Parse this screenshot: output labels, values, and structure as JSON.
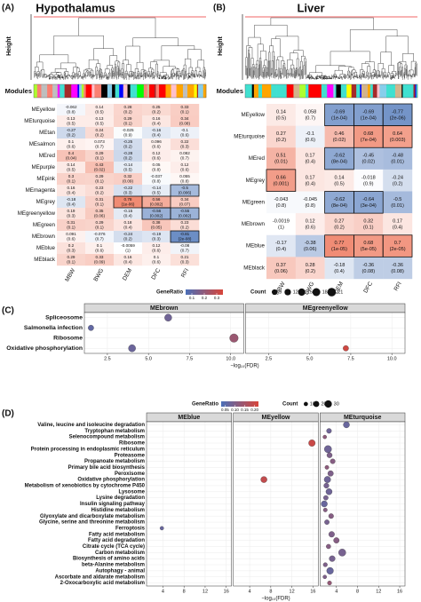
{
  "chart_data": [
    {
      "type": "heatmap",
      "panel": "(A)",
      "title": "Hypothalamus",
      "ylabel": "Height",
      "module_label": "Modules",
      "rows": [
        "MEyellow",
        "MEturquoise",
        "MEtan",
        "MEsalmon",
        "MEred",
        "MEpurple",
        "MEpink",
        "MEmagenta",
        "MEgrey",
        "MEgreenyellow",
        "MEgreen",
        "MEbrown",
        "MEblue",
        "MEblack"
      ],
      "columns": [
        "MBW",
        "BWG",
        "DEM",
        "DFC",
        "RFI"
      ],
      "values": [
        [
          -0.062,
          0.14,
          0.28,
          0.25,
          0.33
        ],
        [
          0.13,
          0.13,
          0.29,
          0.16,
          0.34
        ],
        [
          -0.27,
          0.24,
          -0.025,
          -0.16,
          -0.1
        ],
        [
          0.1,
          0.073,
          -0.25,
          0.096,
          0.22
        ],
        [
          0.4,
          0.29,
          -0.28,
          0.12,
          0.082
        ],
        [
          0.14,
          0.43,
          -0.14,
          0.05,
          0.12
        ],
        [
          0.3,
          0.29,
          0.32,
          -0.037,
          0.055
        ],
        [
          0.16,
          0.23,
          -0.22,
          -0.14,
          -0.5
        ],
        [
          -0.18,
          0.31,
          0.78,
          0.56,
          0.34
        ],
        [
          0.19,
          0.35,
          -0.15,
          -0.56,
          -0.55
        ],
        [
          0.31,
          0.29,
          0.18,
          0.38,
          0.23
        ],
        [
          0.091,
          -0.076,
          -0.24,
          -0.19,
          -0.81
        ],
        [
          0.2,
          0.1,
          -0.0059,
          0.12,
          -0.08
        ],
        [
          0.29,
          0.33,
          0.16,
          0.1,
          0.21
        ]
      ],
      "p_labels": [
        [
          "(0.8)",
          "(0.5)",
          "(0.2)",
          "(0.2)",
          "(0.1)"
        ],
        [
          "(0.5)",
          "(0.5)",
          "(0.1)",
          "(0.4)",
          "(0.08)"
        ],
        [
          "(0.2)",
          "(0.2)",
          "(0.9)",
          "(0.4)",
          "(0.6)"
        ],
        [
          "(0.6)",
          "(0.7)",
          "(0.2)",
          "(0.6)",
          "(0.3)"
        ],
        [
          "(0.04)",
          "(0.1)",
          "(0.2)",
          "(0.6)",
          "(0.7)"
        ],
        [
          "(0.5)",
          "(0.02)",
          "(0.5)",
          "(0.8)",
          "(0.6)"
        ],
        [
          "(0.1)",
          "(0.1)",
          "(0.09)",
          "(0.8)",
          "(0.8)"
        ],
        [
          "(0.4)",
          "(0.2)",
          "(0.3)",
          "(0.5)",
          "(0.006)"
        ],
        [
          "(0.4)",
          "(0.1)",
          "(1e-06)",
          "(0.002)",
          "(0.07)"
        ],
        [
          "(0.3)",
          "(0.06)",
          "(0.4)",
          "(0.002)",
          "(0.002)"
        ],
        [
          "(0.1)",
          "(0.1)",
          "(0.4)",
          "(0.05)",
          "(0.2)"
        ],
        [
          "(0.6)",
          "(0.7)",
          "(0.2)",
          "(0.3)",
          "(2e-08)"
        ],
        [
          "(0.3)",
          "(0.6)",
          "(1)",
          "(0.6)",
          "(0.7)"
        ],
        [
          "(0.1)",
          "(0.09)",
          "(0.4)",
          "(0.6)",
          "(0.3)"
        ]
      ],
      "significant": [
        [
          false,
          false,
          false,
          false,
          false
        ],
        [
          false,
          false,
          false,
          false,
          false
        ],
        [
          false,
          false,
          false,
          false,
          false
        ],
        [
          false,
          false,
          false,
          false,
          false
        ],
        [
          false,
          false,
          false,
          false,
          false
        ],
        [
          false,
          false,
          false,
          false,
          false
        ],
        [
          false,
          false,
          false,
          false,
          false
        ],
        [
          false,
          false,
          false,
          false,
          true
        ],
        [
          false,
          false,
          true,
          true,
          false
        ],
        [
          false,
          false,
          false,
          true,
          true
        ],
        [
          false,
          false,
          false,
          false,
          false
        ],
        [
          false,
          false,
          false,
          false,
          true
        ],
        [
          false,
          false,
          false,
          false,
          false
        ],
        [
          false,
          false,
          false,
          false,
          false
        ]
      ],
      "colors": {
        "negative": "#4a74b8",
        "positive": "#ec6a4c",
        "significant_text": "#a020f0"
      }
    },
    {
      "type": "heatmap",
      "panel": "(B)",
      "title": "Liver",
      "ylabel": "Height",
      "module_label": "Modules",
      "rows": [
        "MEyellow",
        "MEturquoise",
        "MEred",
        "MEgrey",
        "MEgreen",
        "MEbrown",
        "MEblue",
        "MEblack"
      ],
      "columns": [
        "MBW",
        "BWG",
        "DEM",
        "DFC",
        "RFI"
      ],
      "values": [
        [
          0.14,
          0.058,
          -0.69,
          -0.69,
          -0.77
        ],
        [
          0.27,
          -0.1,
          0.46,
          0.68,
          0.64
        ],
        [
          0.51,
          0.17,
          -0.62,
          -0.45,
          -0.48
        ],
        [
          0.66,
          0.17,
          0.14,
          -0.018,
          -0.24
        ],
        [
          -0.043,
          -0.045,
          -0.62,
          -0.64,
          -0.5
        ],
        [
          -0.0019,
          0.12,
          0.27,
          0.32,
          0.17
        ],
        [
          -0.17,
          -0.38,
          0.77,
          0.68,
          0.7
        ],
        [
          0.37,
          0.28,
          -0.18,
          -0.36,
          -0.36
        ]
      ],
      "p_labels": [
        [
          "(0.5)",
          "(0.7)",
          "(1e-04)",
          "(1e-04)",
          "(2e-06)"
        ],
        [
          "(0.2)",
          "(0.6)",
          "(0.02)",
          "(7e-04)",
          "(0.003)"
        ],
        [
          "(0.01)",
          "(0.4)",
          "(8e-04)",
          "(0.02)",
          "(0.01)"
        ],
        [
          "(0.001)",
          "(0.4)",
          "(0.5)",
          "(0.9)",
          "(0.2)"
        ],
        [
          "(0.8)",
          "(0.8)",
          "(8e-04)",
          "(3e-04)",
          "(0.01)"
        ],
        [
          "(1)",
          "(0.6)",
          "(0.2)",
          "(0.1)",
          "(0.4)"
        ],
        [
          "(0.4)",
          "(0.06)",
          "(1e-05)",
          "(5e-05)",
          "(2e-05)"
        ],
        [
          "(0.06)",
          "(0.2)",
          "(0.4)",
          "(0.08)",
          "(0.08)"
        ]
      ],
      "significant": [
        [
          false,
          false,
          true,
          true,
          true
        ],
        [
          false,
          false,
          false,
          true,
          true
        ],
        [
          false,
          false,
          true,
          false,
          false
        ],
        [
          true,
          false,
          false,
          false,
          false
        ],
        [
          false,
          false,
          true,
          true,
          false
        ],
        [
          false,
          false,
          false,
          false,
          false
        ],
        [
          false,
          false,
          true,
          true,
          true
        ],
        [
          false,
          false,
          false,
          false,
          false
        ]
      ],
      "colors": {
        "negative": "#4a74b8",
        "positive": "#ec6a4c",
        "significant_text": "#a020f0"
      }
    },
    {
      "type": "dot",
      "panel": "(C)",
      "categories": [
        "Spliceosome",
        "Salmonella infection",
        "Ribosome",
        "Oxidative phosphorylation"
      ],
      "highlight": "Oxidative phosphorylation",
      "highlight_color": "#e41a1c",
      "facets": [
        {
          "name": "MEbrown",
          "x": [
            6.2,
            1.5,
            10.2,
            4.0
          ],
          "count": [
            15,
            9,
            21,
            15
          ],
          "ratio": [
            0.13,
            0.1,
            0.22,
            0.12
          ]
        },
        {
          "name": "MEgreenyellow",
          "x": [
            null,
            null,
            null,
            7.2
          ],
          "count": [
            null,
            null,
            null,
            9
          ],
          "ratio": [
            null,
            null,
            null,
            0.33
          ]
        }
      ],
      "xlabel": "−log₁₀(FDR)",
      "xlim": [
        1.1,
        10.8
      ],
      "xticks": [
        2.5,
        {
          "value": 5,
          "label": "5.0"
        },
        7.5,
        {
          "value": 10,
          "label": "10.0"
        }
      ],
      "color_legend_title": "GeneRatio",
      "ratio_lim": [
        0.05,
        0.35
      ],
      "ratio_ticks": [
        0.1,
        0.2,
        0.3
      ],
      "colors": {
        "low": "#4a6fb8",
        "high": "#d8453a"
      },
      "size_legend_title": "Count",
      "count_ticks": [
        9,
        12,
        15,
        18,
        21
      ]
    },
    {
      "type": "dot",
      "panel": "(D)",
      "categories": [
        "Valine, leucine and isoleucine degradation",
        "Tryptophan metabolism",
        "Selenocompound metabolism",
        "Ribosome",
        "Protein processing in endoplasmic reticulum",
        "Proteasome",
        "Propanoate metabolism",
        "Primary bile acid biosynthesis",
        "Peroxisome",
        "Oxidative phosphorylation",
        "Metabolism of xenobiotics by cytochrome P450",
        "Lysosome",
        "Lysine degradation",
        "Insulin signaling pathway",
        "Histidine metabolism",
        "Glyoxylate and dicarboxylate metabolism",
        "Glycine, serine and threonine metabolism",
        "Ferroptosis",
        "Fatty acid metabolism",
        "Fatty acid degradation",
        "Citrate cycle (TCA cycle)",
        "Carbon metabolism",
        "Biosynthesis of amino acids",
        "beta-Alanine metabolism",
        "Autophagy - animal",
        "Ascorbate and aldarate metabolism",
        "2-Oxocarboxylic acid metabolism"
      ],
      "highlight": "Oxidative phosphorylation",
      "highlight_color": "#e41a1c",
      "facets": [
        {
          "name": "MEblue",
          "x": [
            null,
            null,
            null,
            null,
            null,
            null,
            null,
            null,
            null,
            null,
            null,
            null,
            null,
            null,
            null,
            null,
            null,
            3.8,
            null,
            null,
            null,
            null,
            null,
            null,
            null,
            null,
            null
          ],
          "count": [
            null,
            null,
            null,
            null,
            null,
            null,
            null,
            null,
            null,
            null,
            null,
            null,
            null,
            null,
            null,
            null,
            null,
            8,
            null,
            null,
            null,
            null,
            null,
            null,
            null,
            null,
            null
          ],
          "ratio": [
            null,
            null,
            null,
            null,
            null,
            null,
            null,
            null,
            null,
            null,
            null,
            null,
            null,
            null,
            null,
            null,
            null,
            0.07,
            null,
            null,
            null,
            null,
            null,
            null,
            null,
            null,
            null
          ]
        },
        {
          "name": "MEyellow",
          "x": [
            null,
            null,
            null,
            15.8,
            null,
            null,
            null,
            null,
            null,
            6.7,
            null,
            null,
            null,
            null,
            null,
            null,
            null,
            null,
            null,
            null,
            null,
            null,
            null,
            null,
            null,
            null,
            null
          ],
          "count": [
            null,
            null,
            null,
            25,
            null,
            null,
            null,
            null,
            null,
            22,
            null,
            null,
            null,
            null,
            null,
            null,
            null,
            null,
            null,
            null,
            null,
            null,
            null,
            null,
            null,
            null,
            null
          ],
          "ratio": [
            null,
            null,
            null,
            0.2,
            null,
            null,
            null,
            null,
            null,
            0.19,
            null,
            null,
            null,
            null,
            null,
            null,
            null,
            null,
            null,
            null,
            null,
            null,
            null,
            null,
            null,
            null,
            null
          ]
        },
        {
          "name": "MEturquoise",
          "x": [
            5.9,
            2.6,
            1.8,
            null,
            2.4,
            2.7,
            3.3,
            2.2,
            2.9,
            2.3,
            2.1,
            2.6,
            2.0,
            1.7,
            1.9,
            3.0,
            2.2,
            null,
            3.1,
            4.0,
            2.5,
            5.1,
            3.2,
            1.9,
            2.8,
            1.8,
            2.7
          ],
          "count": [
            22,
            14,
            8,
            null,
            30,
            16,
            14,
            9,
            18,
            24,
            15,
            22,
            13,
            22,
            9,
            14,
            13,
            null,
            19,
            18,
            12,
            30,
            20,
            10,
            26,
            8,
            10
          ],
          "ratio": [
            0.07,
            0.08,
            0.12,
            null,
            0.08,
            0.1,
            0.11,
            0.12,
            0.1,
            0.08,
            0.09,
            0.08,
            0.09,
            0.07,
            0.11,
            0.11,
            0.09,
            null,
            0.1,
            0.11,
            0.11,
            0.09,
            0.09,
            0.1,
            0.07,
            0.1,
            0.13
          ]
        }
      ],
      "xlabel": "−log₁₀(FDR)",
      "xlim": [
        0.9,
        17
      ],
      "xticks": [
        4,
        8,
        12,
        16
      ],
      "color_legend_title": "GeneRatio",
      "ratio_lim": [
        0.03,
        0.22
      ],
      "ratio_ticks": [
        0.05,
        {
          "value": 0.1,
          "label": "0.10"
        },
        0.15,
        {
          "value": 0.2,
          "label": "0.20"
        }
      ],
      "colors": {
        "low": "#4a6fb8",
        "high": "#d8453a"
      },
      "size_legend_title": "Count",
      "count_ticks": [
        10,
        20,
        30
      ]
    }
  ]
}
